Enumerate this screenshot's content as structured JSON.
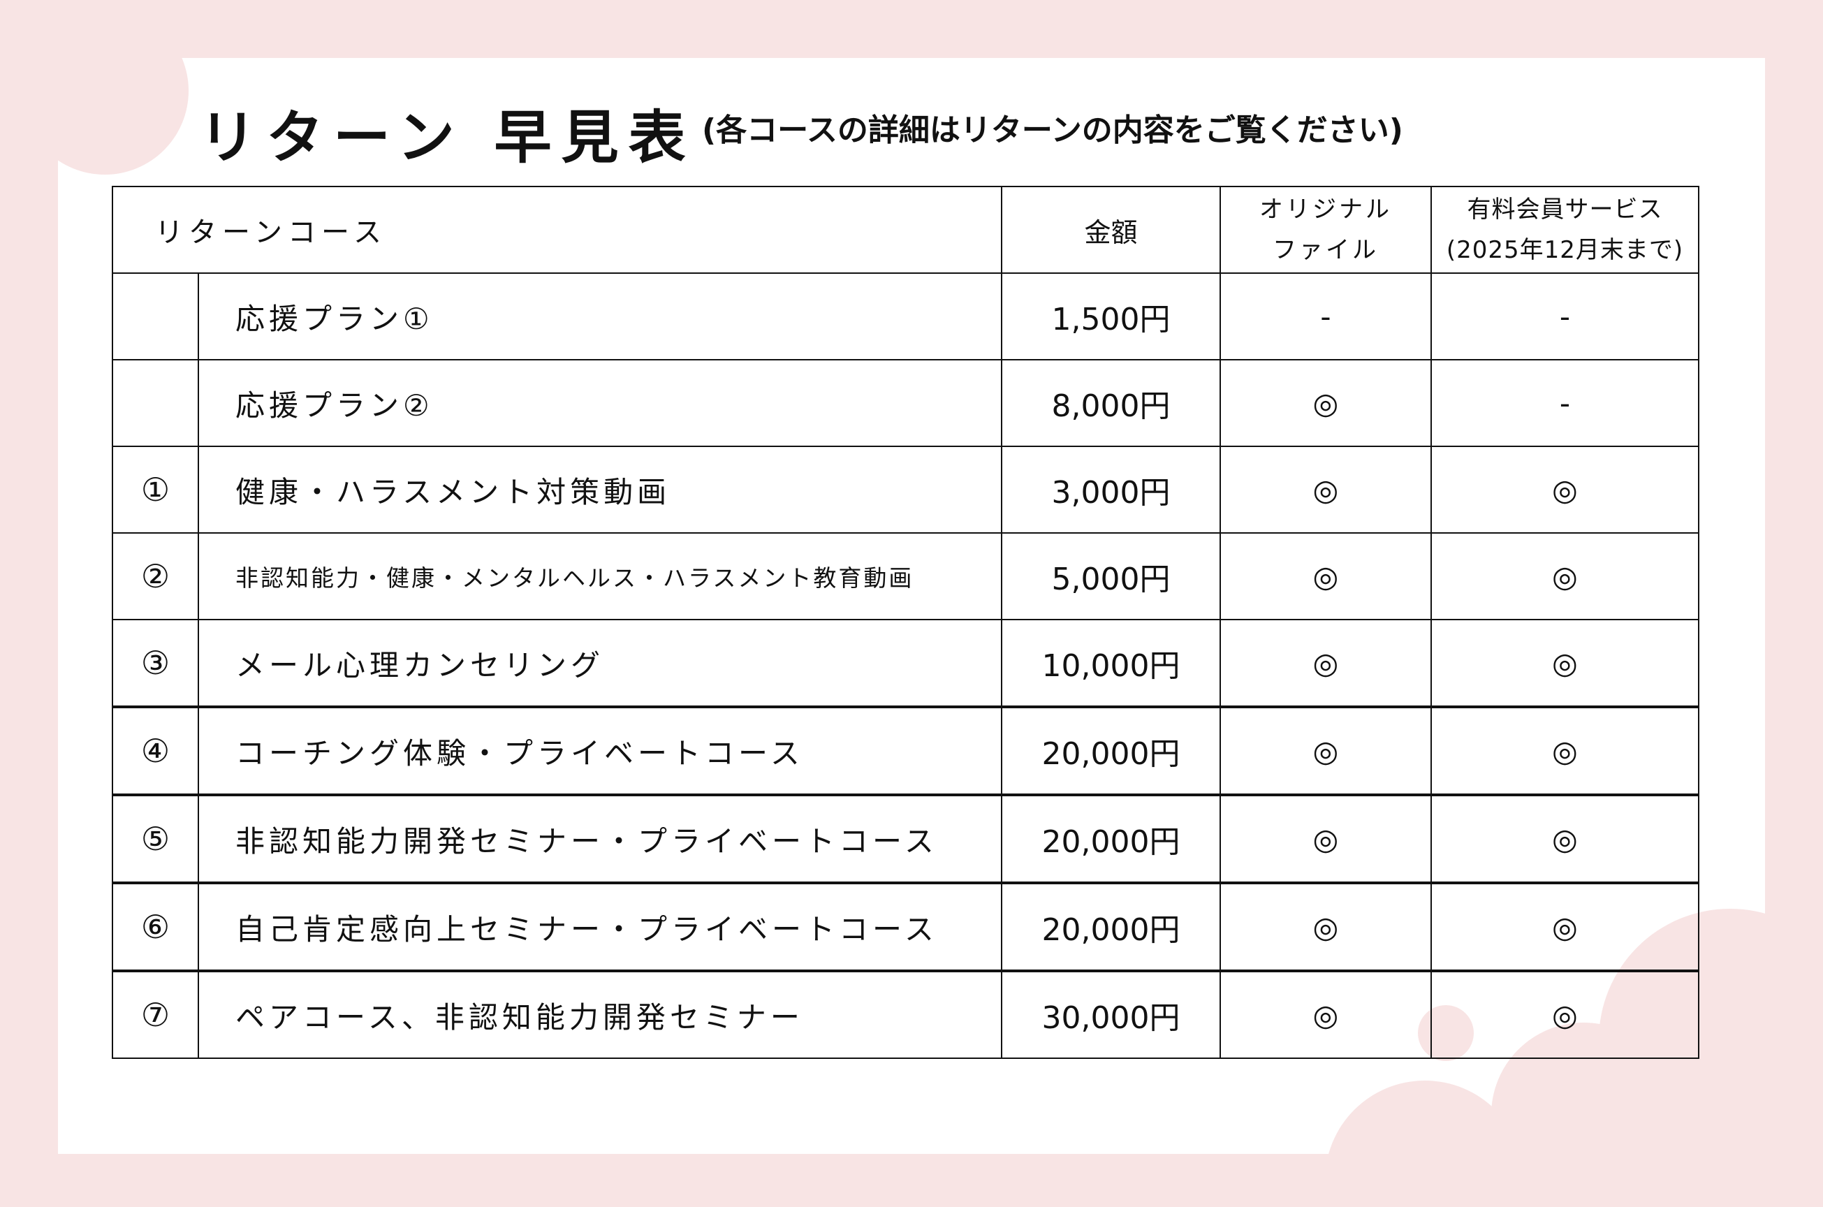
{
  "colors": {
    "background": "#f8e4e4",
    "panel": "#ffffff",
    "text": "#111111"
  },
  "title": "リターン 早見表",
  "subtitle": "(各コースの詳細はリターンの内容をご覧ください)",
  "table": {
    "headers": {
      "course": "リターンコース",
      "price": "金額",
      "original_line1": "オリジナル",
      "original_line2": "ファイル",
      "member_line1": "有料会員サービス",
      "member_line2": "(2025年12月末まで)"
    },
    "rows": [
      {
        "no": "",
        "course": "応援プラン①",
        "price": "1,500円",
        "original": "-",
        "member": "-"
      },
      {
        "no": "",
        "course": "応援プラン②",
        "price": "8,000円",
        "original": "◎",
        "member": "-"
      },
      {
        "no": "①",
        "course": "健康・ハラスメント対策動画",
        "price": "3,000円",
        "original": "◎",
        "member": "◎"
      },
      {
        "no": "②",
        "course": "非認知能力・健康・メンタルヘルス・ハラスメント教育動画",
        "price": "5,000円",
        "original": "◎",
        "member": "◎"
      },
      {
        "no": "③",
        "course": "メール心理カンセリング",
        "price": "10,000円",
        "original": "◎",
        "member": "◎"
      },
      {
        "no": "④",
        "course": "コーチング体験・プライベートコース",
        "price": "20,000円",
        "original": "◎",
        "member": "◎"
      },
      {
        "no": "⑤",
        "course": "非認知能力開発セミナー・プライベートコース",
        "price": "20,000円",
        "original": "◎",
        "member": "◎"
      },
      {
        "no": "⑥",
        "course": "自己肯定感向上セミナー・プライベートコース",
        "price": "20,000円",
        "original": "◎",
        "member": "◎"
      },
      {
        "no": "⑦",
        "course": "ペアコース、非認知能力開発セミナー",
        "price": "30,000円",
        "original": "◎",
        "member": "◎"
      }
    ]
  }
}
